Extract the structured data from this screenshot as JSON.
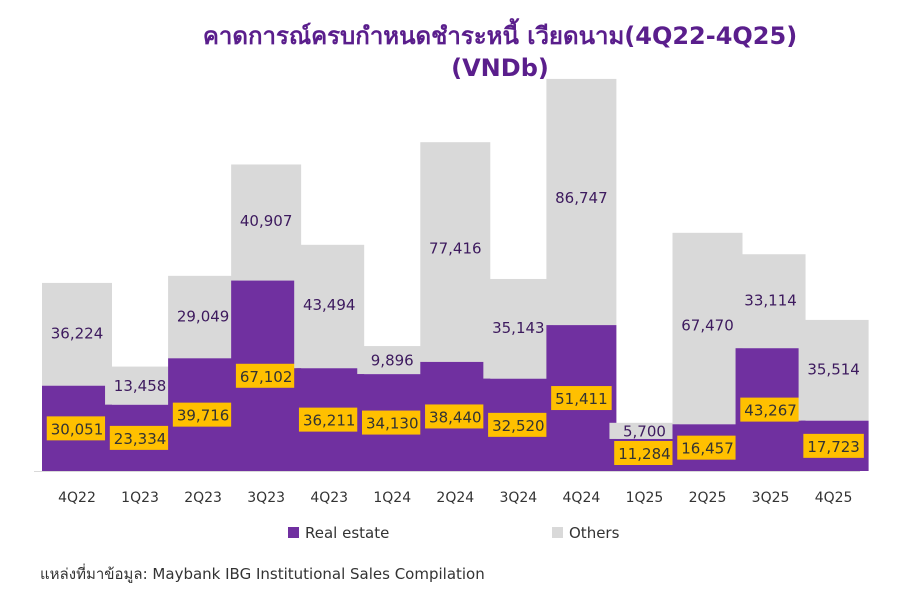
{
  "chart_data": {
    "type": "bar",
    "stacked": true,
    "title": "คาดการณ์ครบกำหนดชำระหนี้ เวียดนาม(4Q22-4Q25)",
    "subtitle": "(VNDb)",
    "categories": [
      "4Q22",
      "1Q23",
      "2Q23",
      "3Q23",
      "4Q23",
      "1Q24",
      "2Q24",
      "3Q24",
      "4Q24",
      "1Q25",
      "2Q25",
      "3Q25",
      "4Q25"
    ],
    "series": [
      {
        "name": "Real estate",
        "color": "#7030a0",
        "values": [
          30051,
          23334,
          39716,
          67102,
          36211,
          34130,
          38440,
          32520,
          51411,
          11284,
          16457,
          43267,
          17723
        ]
      },
      {
        "name": "Others",
        "color": "#d9d9d9",
        "values": [
          36224,
          13458,
          29049,
          40907,
          43494,
          9896,
          77416,
          35143,
          86747,
          5700,
          67470,
          33114,
          35514
        ]
      }
    ],
    "value_labels": {
      "real_estate": [
        "30,051",
        "23,334",
        "39,716",
        "67,102",
        "36,211",
        "34,130",
        "38,440",
        "32,520",
        "51,411",
        "11,284",
        "16,457",
        "43,267",
        "17,723"
      ],
      "others": [
        "36,224",
        "13,458",
        "29,049",
        "40,907",
        "43,494",
        "9,896",
        "77,416",
        "35,143",
        "86,747",
        "5,700",
        "67,470",
        "33,114",
        "35,514"
      ]
    },
    "label_box_color": "#ffc000",
    "others_label_color": "#3d1a5e",
    "legend_position": "bottom",
    "grid": false
  },
  "source": "แหล่งที่มาข้อมูล: Maybank IBG Institutional Sales Compilation"
}
